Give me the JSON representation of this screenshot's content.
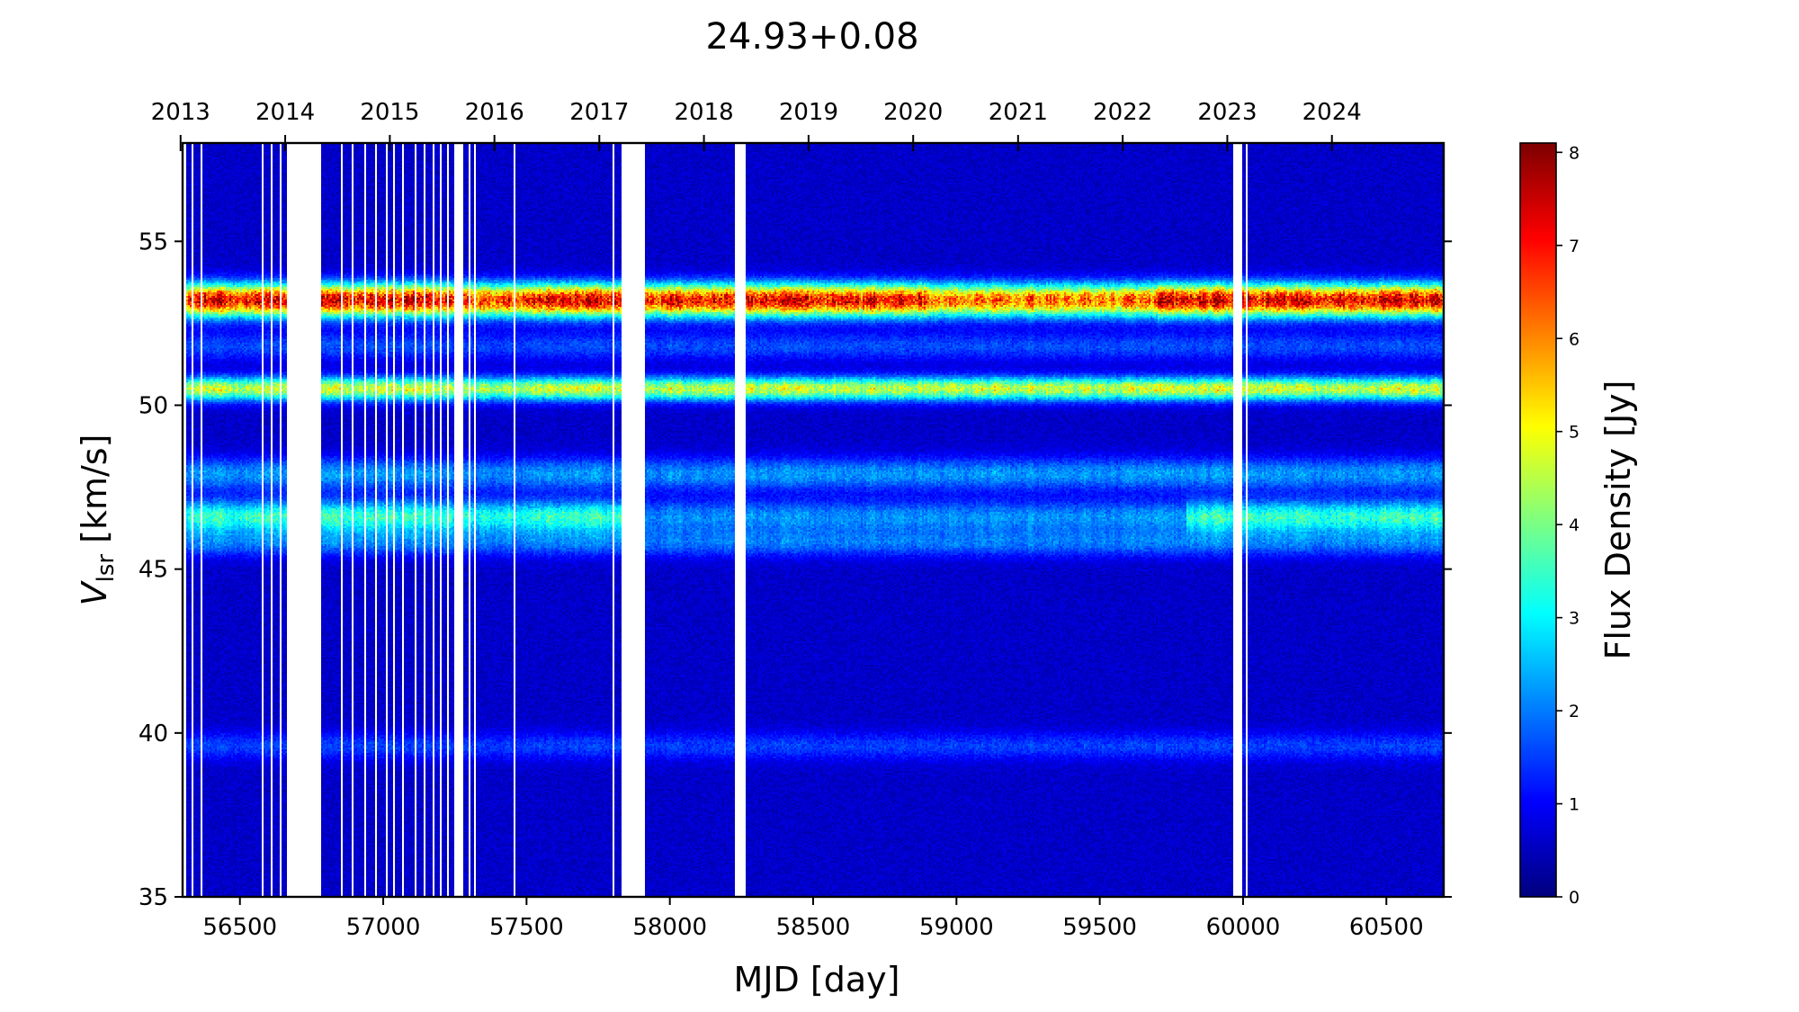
{
  "chart_data": {
    "type": "heatmap",
    "title": "24.93+0.08",
    "xlabel": "MJD [day]",
    "ylabel_main": "V",
    "ylabel_sub": "lsr",
    "ylabel_rest": " [km/s]",
    "colorbar_label": "Flux Density [Jy]",
    "colormap": "jet",
    "xlim": [
      56300,
      60700
    ],
    "ylim": [
      35,
      58
    ],
    "clim": [
      0,
      8.1
    ],
    "x_ticks": [
      56500,
      57000,
      57500,
      58000,
      58500,
      59000,
      59500,
      60000,
      60500
    ],
    "x_tick_labels": [
      "56500",
      "57000",
      "57500",
      "58000",
      "58500",
      "59000",
      "59500",
      "60000",
      "60500"
    ],
    "y_ticks": [
      35,
      40,
      45,
      50,
      55
    ],
    "y_tick_labels": [
      "35",
      "40",
      "45",
      "50",
      "55"
    ],
    "top_axis_ticks_mjd": [
      56293,
      56658,
      57023,
      57388,
      57754,
      58119,
      58484,
      58849,
      59215,
      59580,
      59945,
      60310
    ],
    "top_axis_labels": [
      "2013",
      "2014",
      "2015",
      "2016",
      "2017",
      "2018",
      "2019",
      "2020",
      "2021",
      "2022",
      "2023",
      "2024"
    ],
    "colorbar_ticks": [
      0,
      1,
      2,
      3,
      4,
      5,
      6,
      7,
      8
    ],
    "colorbar_tick_labels": [
      "0",
      "1",
      "2",
      "3",
      "4",
      "5",
      "6",
      "7",
      "8"
    ],
    "gaps_mjd": [
      [
        56330,
        56340
      ],
      [
        56360,
        56368
      ],
      [
        56665,
        56785
      ],
      [
        56850,
        56858
      ],
      [
        57248,
        57280
      ],
      [
        57800,
        57808
      ],
      [
        57830,
        57915
      ],
      [
        58228,
        58262
      ],
      [
        59968,
        59998
      ],
      [
        60010,
        60016
      ]
    ],
    "thin_gaps_mjd": [
      56580,
      56610,
      56640,
      56895,
      56935,
      56975,
      57010,
      57040,
      57070,
      57110,
      57145,
      57175,
      57200,
      57225,
      57300,
      57320,
      57460
    ],
    "emission_features": [
      {
        "velocity": 53.2,
        "peak_flux": 6.5,
        "width_kms": 0.35
      },
      {
        "velocity": 50.5,
        "peak_flux": 4.0,
        "width_kms": 0.25
      },
      {
        "velocity": 47.9,
        "peak_flux": 1.6,
        "width_kms": 0.35
      },
      {
        "velocity": 46.6,
        "peak_flux": 2.8,
        "width_kms": 0.35
      },
      {
        "velocity": 45.8,
        "peak_flux": 1.3,
        "width_kms": 0.3
      },
      {
        "velocity": 51.8,
        "peak_flux": 1.0,
        "width_kms": 0.3
      },
      {
        "velocity": 39.6,
        "peak_flux": 0.9,
        "width_kms": 0.3
      }
    ]
  }
}
